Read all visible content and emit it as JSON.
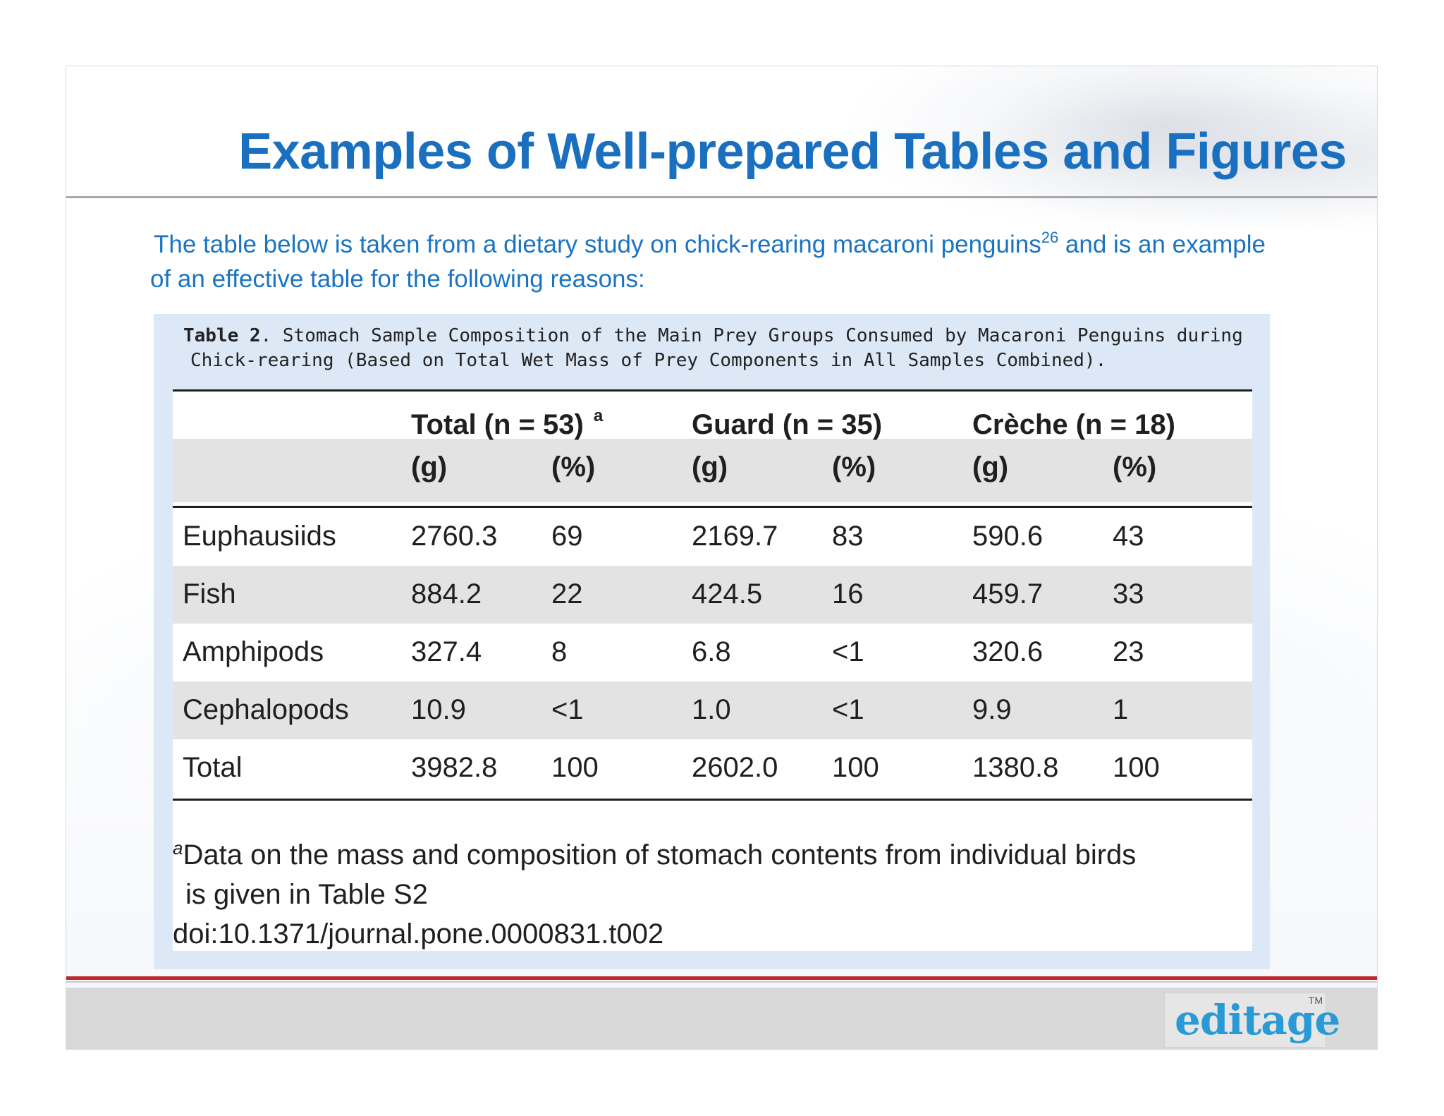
{
  "slide": {
    "title": "Examples of Well-prepared Tables and Figures",
    "intro_part1": "The table below is taken from a dietary study on chick-rearing macaroni penguins",
    "intro_sup": "26",
    "intro_part2": " and is an example",
    "intro_line2": "of an effective table for the following reasons:"
  },
  "table": {
    "caption_label": "Table 2",
    "caption_line1": ". Stomach Sample Composition of the Main Prey Groups Consumed by Macaroni Penguins during",
    "caption_line2": "Chick-rearing (Based on Total Wet Mass of Prey Components in All Samples Combined).",
    "groups": [
      {
        "label": "Total (n = 53)",
        "sup": "a"
      },
      {
        "label": "Guard (n = 35)"
      },
      {
        "label": "Crèche (n = 18)"
      }
    ],
    "subheaders": [
      "(g)",
      "(%)",
      "(g)",
      "(%)",
      "(g)",
      "(%)"
    ],
    "rows": [
      {
        "name": "Euphausiids",
        "values": [
          "2760.3",
          "69",
          "2169.7",
          "83",
          "590.6",
          "43"
        ]
      },
      {
        "name": "Fish",
        "values": [
          "884.2",
          "22",
          "424.5",
          "16",
          "459.7",
          "33"
        ]
      },
      {
        "name": "Amphipods",
        "values": [
          "327.4",
          "8",
          "6.8",
          "<1",
          "320.6",
          "23"
        ]
      },
      {
        "name": "Cephalopods",
        "values": [
          "10.9",
          "<1",
          "1.0",
          "<1",
          "9.9",
          "1"
        ]
      },
      {
        "name": "Total",
        "values": [
          "3982.8",
          "100",
          "2602.0",
          "100",
          "1380.8",
          "100"
        ]
      }
    ],
    "footnote_mark": "a",
    "footnote_line1": "Data on the mass and composition of stomach contents from individual birds",
    "footnote_line2": "is given in Table S2",
    "doi": "doi:10.1371/journal.pone.0000831.t002"
  },
  "footer": {
    "logo_text": "editage",
    "logo_tm": "TM"
  },
  "colors": {
    "title": "#1a6fbf",
    "intro": "#1a74c2",
    "accent_rule": "#c0272d",
    "panel": "#dde8f7",
    "row_shade": "#e3e3e3"
  }
}
